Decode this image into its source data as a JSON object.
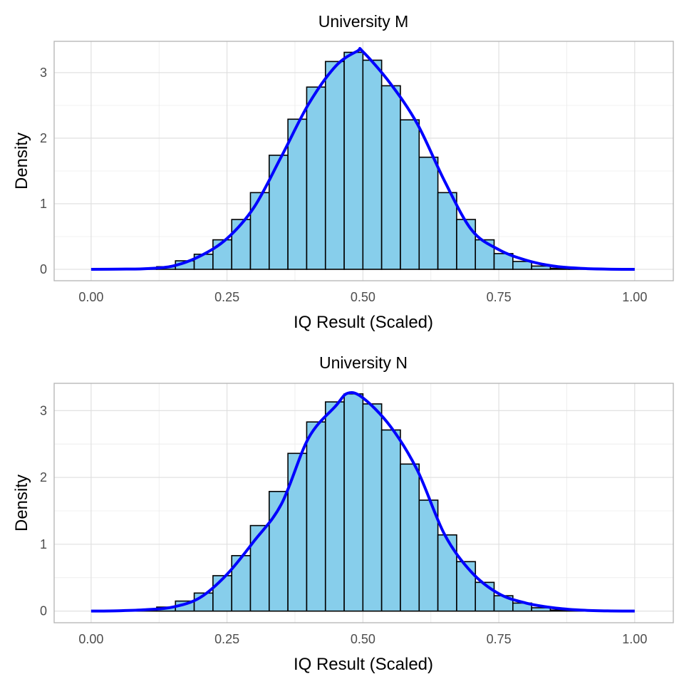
{
  "chart_data": [
    {
      "type": "bar",
      "title": "University M",
      "xlabel": "IQ Result (Scaled)",
      "ylabel": "Density",
      "xlim": [
        -0.068,
        1.071
      ],
      "ylim": [
        -0.174,
        3.478
      ],
      "x_ticks": [
        "0.00",
        "0.25",
        "0.50",
        "0.75",
        "1.00"
      ],
      "y_ticks": [
        "0",
        "1",
        "2",
        "3"
      ],
      "grid": true,
      "bins": 30,
      "bar_fill": "#87CEEB",
      "bar_outline": "#000000",
      "density_color": "#0000FF",
      "histogram": {
        "x": [
          0,
          0.0345,
          0.069,
          0.1034,
          0.1379,
          0.1724,
          0.2069,
          0.2414,
          0.2759,
          0.3103,
          0.3448,
          0.3793,
          0.4138,
          0.4483,
          0.4828,
          0.5172,
          0.5517,
          0.5862,
          0.6207,
          0.6552,
          0.6897,
          0.7241,
          0.7586,
          0.7931,
          0.8276,
          0.8621,
          0.8966,
          0.931,
          0.9655,
          1
        ],
        "density": [
          0,
          0,
          0.002,
          0.01,
          0.04,
          0.13,
          0.23,
          0.45,
          0.76,
          1.17,
          1.74,
          2.29,
          2.78,
          3.17,
          3.31,
          3.19,
          2.8,
          2.28,
          1.71,
          1.17,
          0.76,
          0.45,
          0.24,
          0.12,
          0.05,
          0.015,
          0.004,
          0,
          0,
          0
        ]
      },
      "density_curve": {
        "x": [
          0,
          0.05,
          0.1,
          0.15,
          0.2,
          0.25,
          0.3,
          0.35,
          0.4,
          0.45,
          0.49,
          0.5,
          0.55,
          0.6,
          0.65,
          0.7,
          0.75,
          0.8,
          0.85,
          0.9,
          0.95,
          1
        ],
        "y": [
          0,
          0.003,
          0.01,
          0.05,
          0.2,
          0.47,
          0.95,
          1.72,
          2.52,
          3.1,
          3.33,
          3.32,
          2.84,
          2.22,
          1.35,
          0.6,
          0.3,
          0.14,
          0.05,
          0.015,
          0.003,
          0
        ]
      }
    },
    {
      "type": "bar",
      "title": "University N",
      "xlabel": "IQ Result (Scaled)",
      "ylabel": "Density",
      "xlim": [
        -0.068,
        1.071
      ],
      "ylim": [
        -0.174,
        3.408
      ],
      "x_ticks": [
        "0.00",
        "0.25",
        "0.50",
        "0.75",
        "1.00"
      ],
      "y_ticks": [
        "0",
        "1",
        "2",
        "3"
      ],
      "grid": true,
      "bins": 30,
      "bar_fill": "#87CEEB",
      "bar_outline": "#000000",
      "density_color": "#0000FF",
      "histogram": {
        "x": [
          0,
          0.0345,
          0.069,
          0.1034,
          0.1379,
          0.1724,
          0.2069,
          0.2414,
          0.2759,
          0.3103,
          0.3448,
          0.3793,
          0.4138,
          0.4483,
          0.4828,
          0.5172,
          0.5517,
          0.5862,
          0.6207,
          0.6552,
          0.6897,
          0.7241,
          0.7586,
          0.7931,
          0.8276,
          0.8621,
          0.8966,
          0.931,
          0.9655,
          1
        ],
        "density": [
          0,
          0,
          0.005,
          0.02,
          0.06,
          0.15,
          0.27,
          0.53,
          0.83,
          1.28,
          1.79,
          2.36,
          2.83,
          3.13,
          3.25,
          3.1,
          2.71,
          2.2,
          1.66,
          1.14,
          0.74,
          0.43,
          0.23,
          0.12,
          0.05,
          0.015,
          0.004,
          0,
          0,
          0
        ]
      },
      "density_curve": {
        "x": [
          0,
          0.05,
          0.1,
          0.15,
          0.2,
          0.25,
          0.3,
          0.35,
          0.4,
          0.45,
          0.472,
          0.5,
          0.55,
          0.6,
          0.65,
          0.7,
          0.75,
          0.8,
          0.85,
          0.9,
          0.95,
          1
        ],
        "y": [
          0,
          0.005,
          0.02,
          0.06,
          0.2,
          0.55,
          1.05,
          1.6,
          2.59,
          3.07,
          3.26,
          3.19,
          2.77,
          2.11,
          1.15,
          0.58,
          0.26,
          0.12,
          0.05,
          0.015,
          0.003,
          0
        ]
      }
    }
  ]
}
